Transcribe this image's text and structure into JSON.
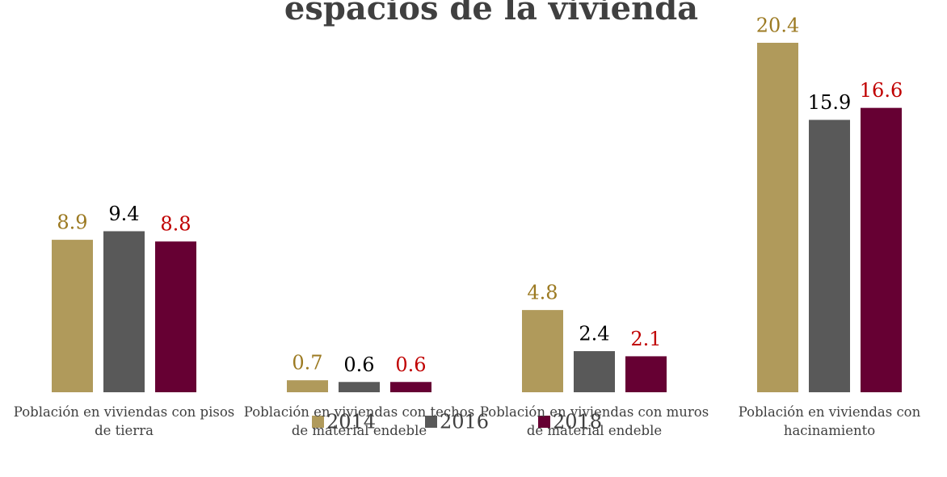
{
  "chart_data": {
    "type": "bar",
    "title": "espacios de la vivienda",
    "categories": [
      "Población en viviendas con pisos de tierra",
      "Población en viviendas con techos de material endeble",
      "Población en viviendas con muros de material endeble",
      "Población en viviendas con hacinamiento"
    ],
    "series": [
      {
        "name": "2014",
        "color": "#b09a5b",
        "label_color": "#9c7a22",
        "values": [
          8.9,
          0.7,
          4.8,
          20.4
        ]
      },
      {
        "name": "2016",
        "color": "#595959",
        "label_color": "#000000",
        "values": [
          9.4,
          0.6,
          2.4,
          15.9
        ]
      },
      {
        "name": "2018",
        "color": "#660033",
        "label_color": "#c00000",
        "values": [
          8.8,
          0.6,
          2.1,
          16.6
        ]
      }
    ],
    "ylim": [
      0,
      20.4
    ],
    "legend": "bottom"
  }
}
